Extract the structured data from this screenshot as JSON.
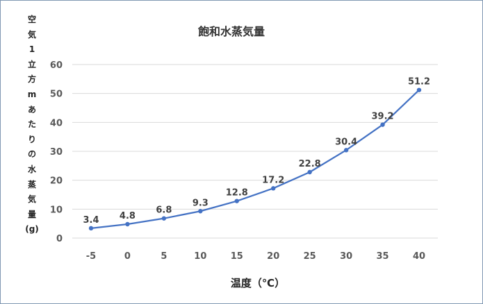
{
  "chart_data": {
    "type": "line",
    "title": "飽和水蒸気量",
    "xlabel": "温度（℃）",
    "ylabel_chars": [
      "空",
      "気",
      "1",
      "立",
      "方",
      "m",
      "あ",
      "た",
      "り",
      "の",
      "水",
      "蒸",
      "気",
      "量",
      "(g)"
    ],
    "categories": [
      "-5",
      "0",
      "5",
      "10",
      "15",
      "20",
      "25",
      "30",
      "35",
      "40"
    ],
    "x": [
      -5,
      0,
      5,
      10,
      15,
      20,
      25,
      30,
      35,
      40
    ],
    "series": [
      {
        "values": [
          3.4,
          4.8,
          6.8,
          9.3,
          12.8,
          17.2,
          22.8,
          30.4,
          39.2,
          51.2
        ],
        "labels": [
          "3.4",
          "4.8",
          "6.8",
          "9.3",
          "12.8",
          "17.2",
          "22.8",
          "30.4",
          "39.2",
          "51.2"
        ]
      }
    ],
    "ylim": [
      0,
      60
    ],
    "yticks": [
      "0",
      "10",
      "20",
      "30",
      "40",
      "50",
      "60"
    ],
    "grid": "horizontal",
    "colors": {
      "line": "#4472c4",
      "grid": "#d9d9d9",
      "border": "#7f97b2"
    }
  }
}
